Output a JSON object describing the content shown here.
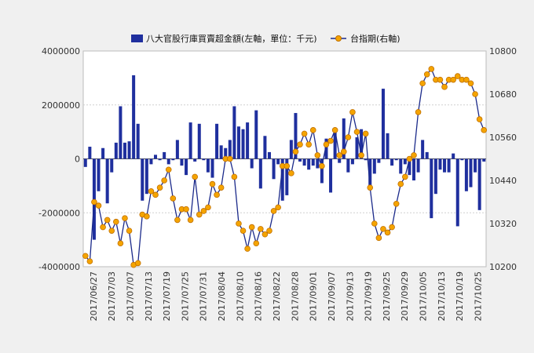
{
  "chart_data": {
    "type": "bar+line",
    "legend": {
      "placement": "top",
      "bar_label": "八大官股行庫買賣超金額(左軸，單位：千元)",
      "line_label": "台指期(右軸)"
    },
    "colors": {
      "bar": "#1f2f9e",
      "line": "#1b2a8a",
      "marker_fill": "#f5a400",
      "marker_stroke": "#c07000",
      "plot_bg": "#ffffff",
      "grid": "#cfcfcf"
    },
    "left_axis": {
      "min": -4000000,
      "max": 4000000,
      "ticks": [
        4000000,
        2000000,
        0,
        -2000000,
        -4000000
      ],
      "tick_labels": [
        "4000000",
        "2000000",
        "0",
        "-2000000",
        "-4000000"
      ]
    },
    "right_axis": {
      "min": 10200,
      "max": 10800,
      "ticks": [
        10800,
        10680,
        10560,
        10440,
        10320,
        10200
      ],
      "tick_labels": [
        "10800",
        "10680",
        "10560",
        "10440",
        "10320",
        "10200"
      ]
    },
    "x_ticks": [
      "2017/06/27",
      "2017/07/03",
      "2017/07/07",
      "2017/07/13",
      "2017/07/19",
      "2017/07/25",
      "2017/07/31",
      "2017/08/04",
      "2017/08/10",
      "2017/08/16",
      "2017/08/22",
      "2017/08/28",
      "2017/09/01",
      "2017/09/07",
      "2017/09/13",
      "2017/09/19",
      "2017/09/25",
      "2017/09/29",
      "2017/10/05",
      "2017/10/13",
      "2017/10/19",
      "2017/10/25"
    ],
    "bars": [
      -300000,
      450000,
      -3000000,
      -1200000,
      400000,
      -1650000,
      -500000,
      600000,
      1950000,
      600000,
      650000,
      3100000,
      1300000,
      -1550000,
      -1300000,
      -200000,
      150000,
      -50000,
      250000,
      -200000,
      -50000,
      700000,
      -250000,
      -600000,
      1350000,
      -100000,
      1300000,
      -50000,
      -500000,
      -700000,
      1300000,
      500000,
      400000,
      700000,
      1950000,
      1200000,
      1100000,
      1350000,
      -350000,
      1800000,
      -1100000,
      850000,
      250000,
      -750000,
      -200000,
      -1550000,
      -1350000,
      700000,
      1700000,
      -100000,
      -250000,
      -400000,
      -250000,
      -350000,
      -900000,
      750000,
      -1250000,
      1100000,
      -150000,
      1500000,
      -500000,
      -200000,
      800000,
      1100000,
      -50000,
      -1050000,
      -550000,
      -150000,
      2600000,
      950000,
      -250000,
      -50000,
      -550000,
      -200000,
      -600000,
      -800000,
      -500000,
      700000,
      250000,
      -2200000,
      -1300000,
      -400000,
      -500000,
      -500000,
      200000,
      -2500000,
      -50000,
      -1200000,
      -1050000,
      -500000,
      -1900000,
      -100000
    ],
    "line": [
      10230,
      10215,
      10380,
      10370,
      10310,
      10330,
      10300,
      10325,
      10265,
      10335,
      10300,
      10205,
      10210,
      10345,
      10340,
      10410,
      10400,
      10420,
      10440,
      10470,
      10390,
      10330,
      10360,
      10360,
      10330,
      10450,
      10345,
      10355,
      10365,
      10430,
      10400,
      10420,
      10500,
      10500,
      10450,
      10320,
      10300,
      10250,
      10310,
      10265,
      10305,
      10290,
      10300,
      10355,
      10365,
      10480,
      10480,
      10460,
      10520,
      10540,
      10570,
      10540,
      10580,
      10510,
      10480,
      10540,
      10550,
      10580,
      10510,
      10520,
      10560,
      10630,
      10575,
      10510,
      10570,
      10420,
      10320,
      10280,
      10305,
      10295,
      10310,
      10375,
      10430,
      10450,
      10500,
      10510,
      10630,
      10710,
      10735,
      10750,
      10720,
      10720,
      10700,
      10720,
      10720,
      10730,
      10720,
      10720,
      10710,
      10680,
      10610,
      10580
    ]
  }
}
